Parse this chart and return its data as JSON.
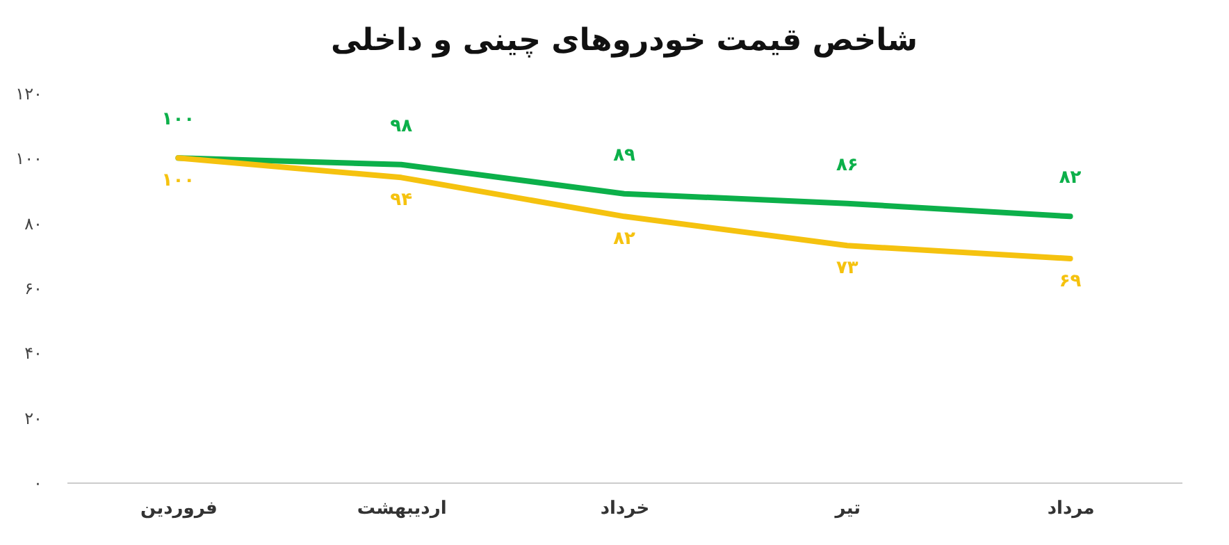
{
  "chart_data": {
    "type": "line",
    "title": "شاخص قیمت خودروهای چینی و داخلی",
    "categories": [
      "فروردین",
      "اردیبهشت",
      "خرداد",
      "تیر",
      "مرداد"
    ],
    "series": [
      {
        "color": "#0cb04a",
        "values": [
          100,
          98,
          89,
          86,
          82
        ],
        "value_labels": [
          "۱۰۰",
          "۹۸",
          "۸۹",
          "۸۶",
          "۸۲"
        ]
      },
      {
        "color": "#f5c20f",
        "values": [
          100,
          94,
          82,
          73,
          69
        ],
        "value_labels": [
          "۱۰۰",
          "۹۴",
          "۸۲",
          "۷۳",
          "۶۹"
        ]
      }
    ],
    "ylim": [
      0,
      120
    ],
    "yticks": [
      {
        "value": 0,
        "label": "۰"
      },
      {
        "value": 20,
        "label": "۲۰"
      },
      {
        "value": 40,
        "label": "۴۰"
      },
      {
        "value": 60,
        "label": "۶۰"
      },
      {
        "value": 80,
        "label": "۸۰"
      },
      {
        "value": 100,
        "label": "۱۰۰"
      },
      {
        "value": 120,
        "label": "۱۲۰"
      }
    ],
    "grid": false,
    "marker": "none",
    "line_style": "solid"
  }
}
